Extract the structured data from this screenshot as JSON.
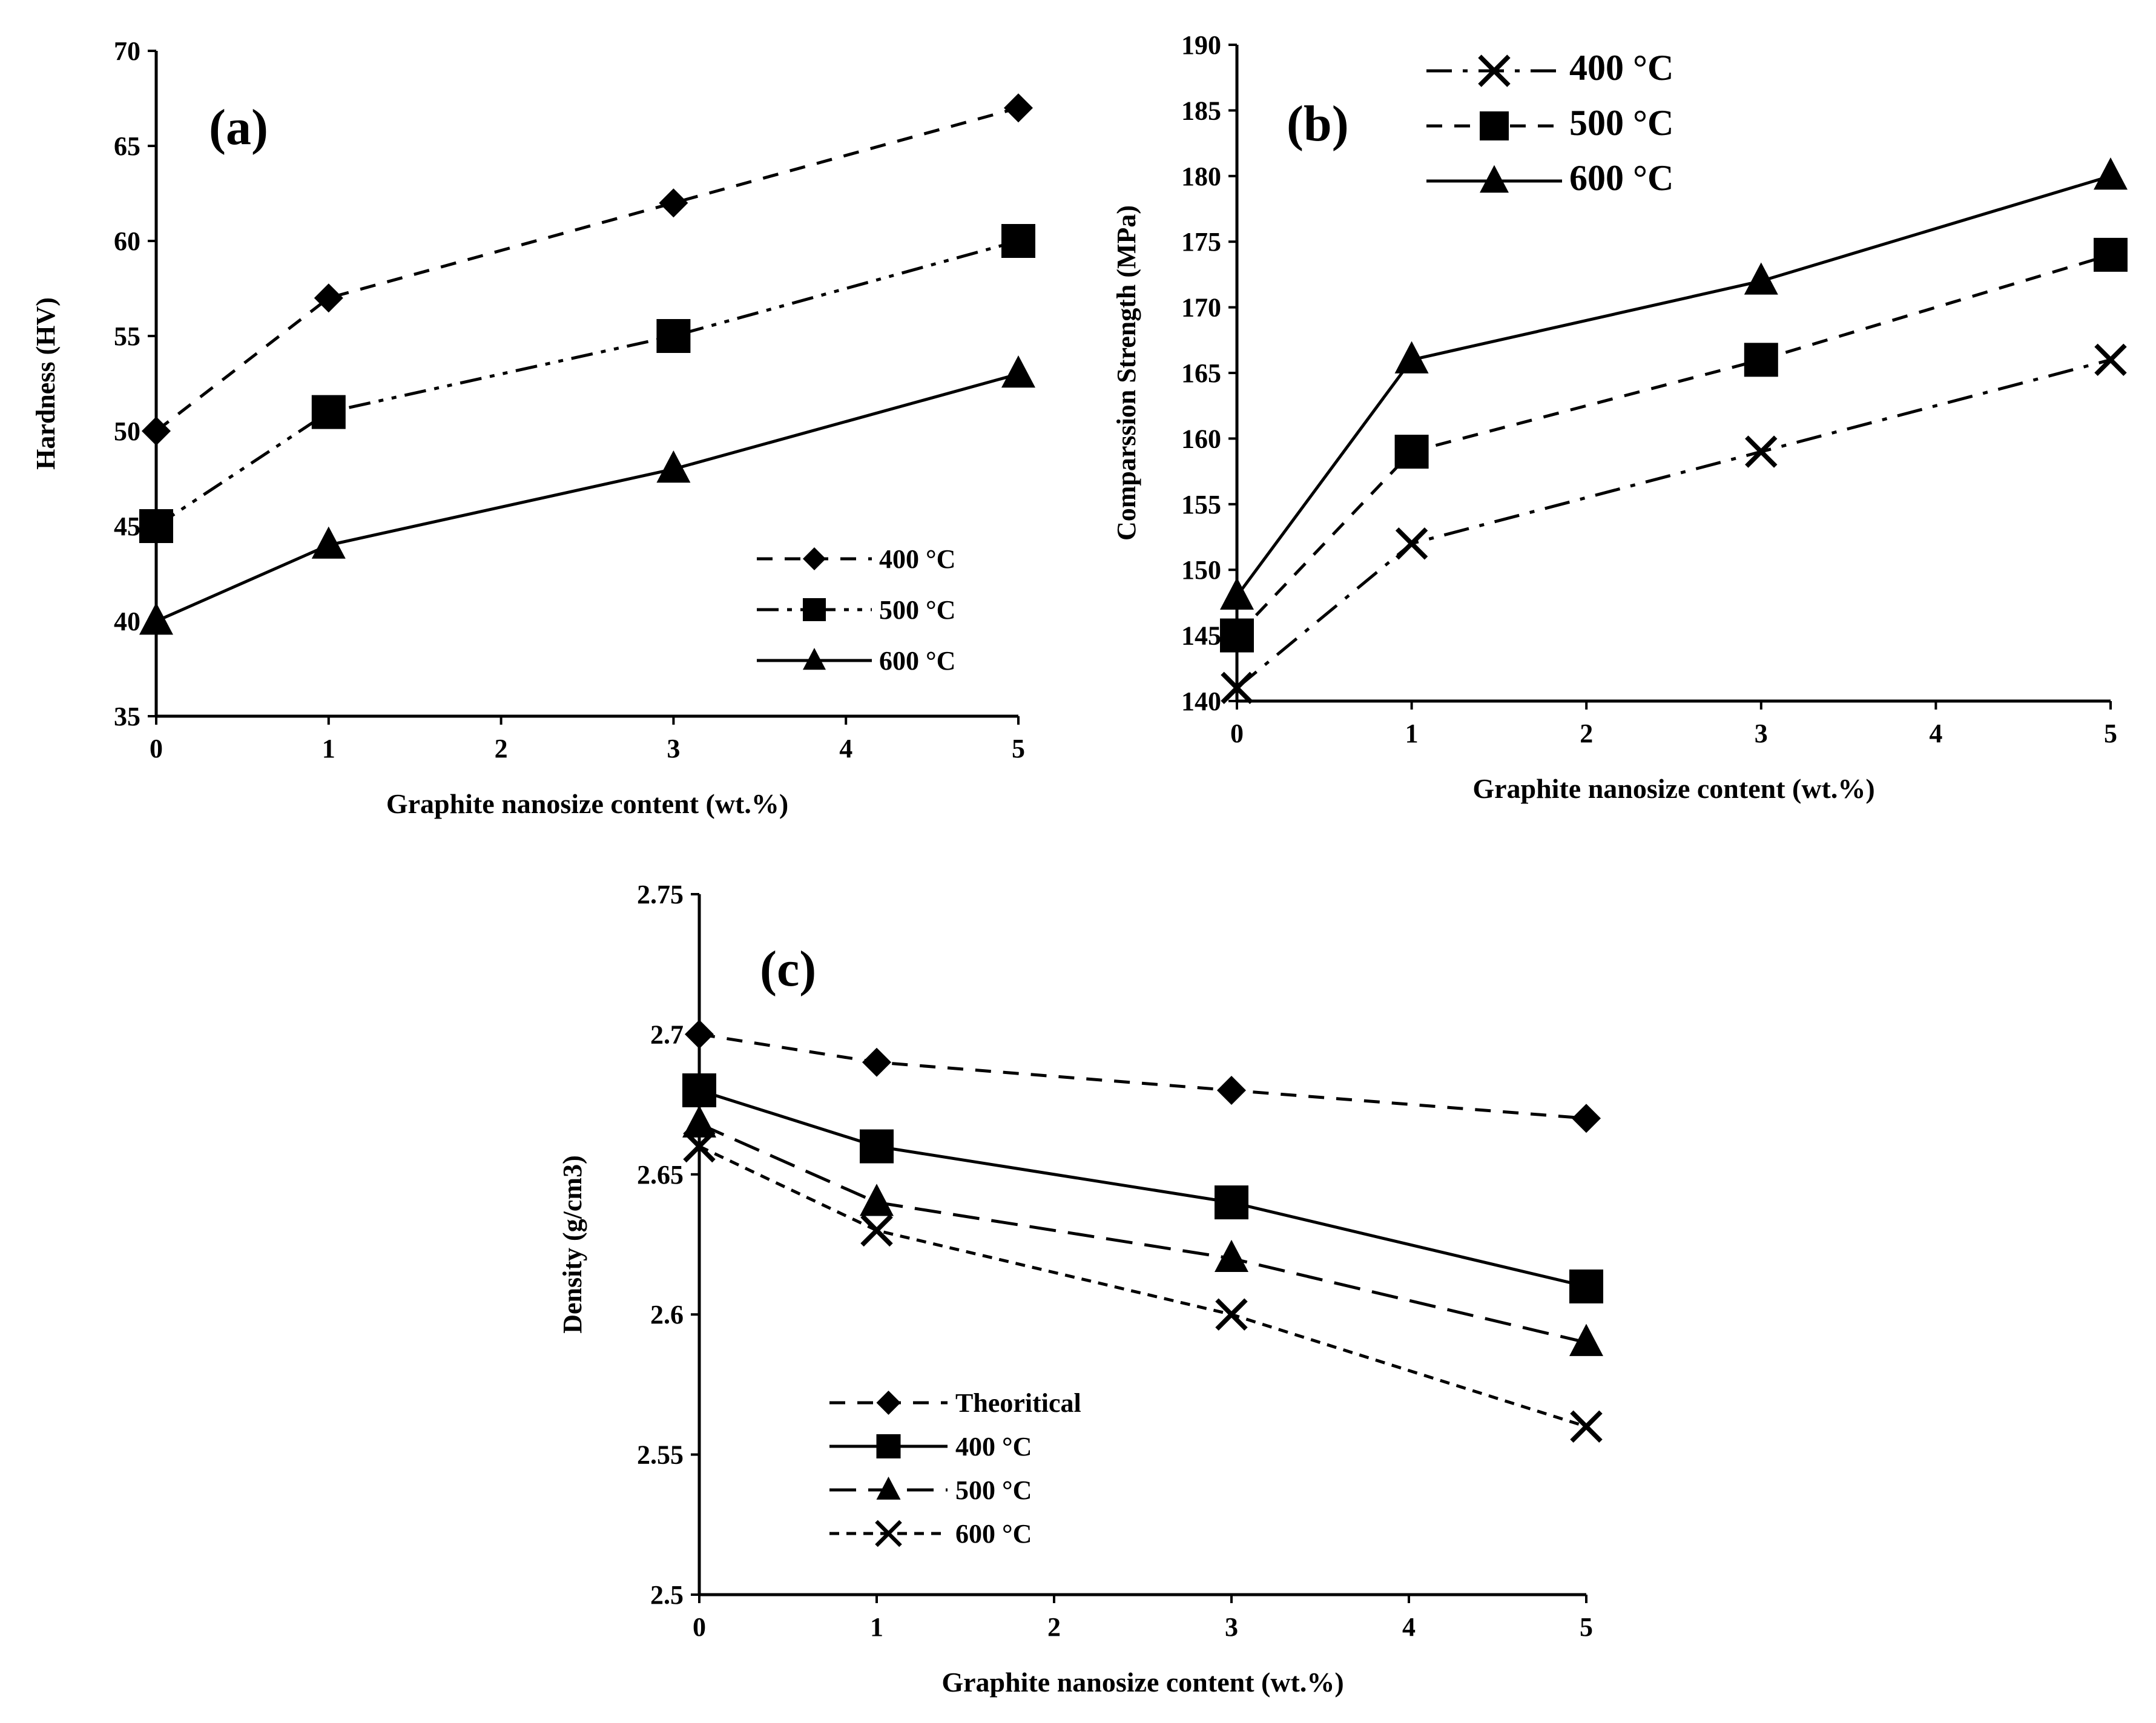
{
  "chart_data": [
    {
      "id": "a",
      "type": "line",
      "panel_label": "(a)",
      "xlabel": "Graphite nanosize content (wt.%)",
      "ylabel": "Hardness (HV)",
      "xlim": [
        0,
        5
      ],
      "ylim": [
        35,
        70
      ],
      "xticks": [
        "0",
        "1",
        "2",
        "3",
        "4",
        "5"
      ],
      "yticks": [
        "35",
        "40",
        "45",
        "50",
        "55",
        "60",
        "65",
        "70"
      ],
      "legend_position": "bottom-right",
      "series": [
        {
          "name": "400 °C",
          "x": [
            0,
            1,
            3,
            5
          ],
          "values": [
            50,
            57,
            62,
            67
          ],
          "marker": "diamond",
          "line": "dashed"
        },
        {
          "name": "500 °C",
          "x": [
            0,
            1,
            3,
            5
          ],
          "values": [
            45,
            51,
            55,
            60
          ],
          "marker": "square",
          "line": "dash-dot-dot"
        },
        {
          "name": "600 °C",
          "x": [
            0,
            1,
            3,
            5
          ],
          "values": [
            40,
            44,
            48,
            53
          ],
          "marker": "triangle",
          "line": "solid"
        }
      ]
    },
    {
      "id": "b",
      "type": "line",
      "panel_label": "(b)",
      "xlabel": "Graphite nanosize content (wt.%)",
      "ylabel": "Comparssion Strength (MPa)",
      "xlim": [
        0,
        5
      ],
      "ylim": [
        140,
        190
      ],
      "xticks": [
        "0",
        "1",
        "2",
        "3",
        "4",
        "5"
      ],
      "yticks": [
        "140",
        "145",
        "150",
        "155",
        "160",
        "165",
        "170",
        "175",
        "180",
        "185",
        "190"
      ],
      "legend_position": "top-left",
      "series": [
        {
          "name": "400 °C",
          "x": [
            0,
            1,
            3,
            5
          ],
          "values": [
            141,
            152,
            159,
            166
          ],
          "marker": "x",
          "line": "dash-dot"
        },
        {
          "name": "500 °C",
          "x": [
            0,
            1,
            3,
            5
          ],
          "values": [
            145,
            159,
            166,
            174
          ],
          "marker": "square",
          "line": "dashed"
        },
        {
          "name": "600 °C",
          "x": [
            0,
            1,
            3,
            5
          ],
          "values": [
            148,
            166,
            172,
            180
          ],
          "marker": "triangle",
          "line": "solid"
        }
      ]
    },
    {
      "id": "c",
      "type": "line",
      "panel_label": "(c)",
      "xlabel": "Graphite nanosize content (wt.%)",
      "ylabel": "Density (g/cm3)",
      "xlim": [
        0,
        5
      ],
      "ylim": [
        2.5,
        2.75
      ],
      "xticks": [
        "0",
        "1",
        "2",
        "3",
        "4",
        "5"
      ],
      "yticks": [
        "2.5",
        "2.55",
        "2.6",
        "2.65",
        "2.7",
        "2.75"
      ],
      "legend_position": "bottom-left",
      "series": [
        {
          "name": "Theoritical",
          "x": [
            0,
            1,
            3,
            5
          ],
          "values": [
            2.7,
            2.69,
            2.68,
            2.67
          ],
          "marker": "diamond",
          "line": "dashed"
        },
        {
          "name": "400 °C",
          "x": [
            0,
            1,
            3,
            5
          ],
          "values": [
            2.68,
            2.66,
            2.64,
            2.61
          ],
          "marker": "square",
          "line": "solid"
        },
        {
          "name": "500 °C",
          "x": [
            0,
            1,
            3,
            5
          ],
          "values": [
            2.668,
            2.64,
            2.62,
            2.59
          ],
          "marker": "triangle",
          "line": "long-dash"
        },
        {
          "name": "600 °C",
          "x": [
            0,
            1,
            3,
            5
          ],
          "values": [
            2.66,
            2.63,
            2.6,
            2.56
          ],
          "marker": "x",
          "line": "short-dash"
        }
      ]
    }
  ]
}
